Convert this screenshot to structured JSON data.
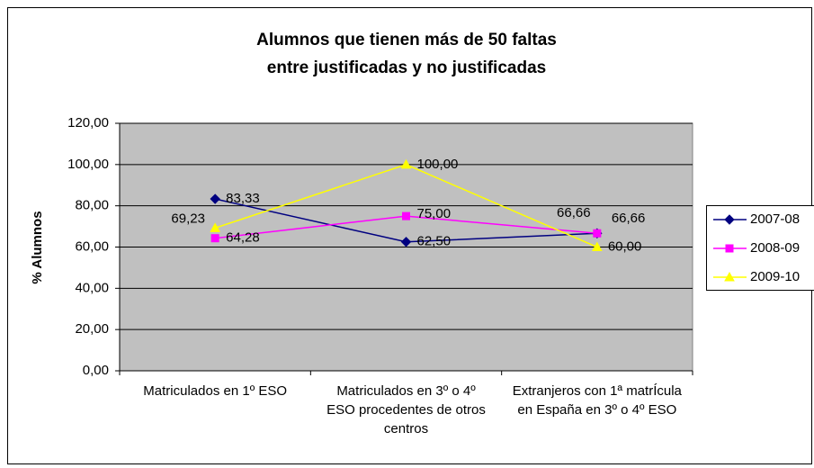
{
  "chart_data": {
    "type": "line",
    "title": [
      "Alumnos que tienen más de 50 faltas",
      "entre justificadas y no justificadas"
    ],
    "y_label": "% Alumnos",
    "categories": [
      "Matriculados en 1º ESO",
      "Matriculados en 3º o 4º ESO procedentes de otros centros",
      "Extranjeros con 1ª matrÍcula en España en 3º o 4º ESO"
    ],
    "series": [
      {
        "name": "2007-08",
        "color": "#000080",
        "marker": "diamond",
        "values": [
          83.33,
          62.5,
          66.66
        ],
        "value_labels": [
          "83,33",
          "62,50",
          "66,66"
        ]
      },
      {
        "name": "2008-09",
        "color": "#ff00ff",
        "marker": "square",
        "values": [
          64.28,
          75.0,
          66.66
        ],
        "value_labels": [
          "64,28",
          "75,00",
          "66,66"
        ]
      },
      {
        "name": "2009-10",
        "color": "#ffff00",
        "marker": "triangle",
        "values": [
          69.23,
          100.0,
          60.0
        ],
        "value_labels": [
          "69,23",
          "100,00",
          "60,00"
        ]
      }
    ],
    "ylim": [
      0,
      120
    ],
    "yticks": [
      {
        "value": 0,
        "label": "0,00"
      },
      {
        "value": 20,
        "label": "20,00"
      },
      {
        "value": 40,
        "label": "40,00"
      },
      {
        "value": 60,
        "label": "60,00"
      },
      {
        "value": 80,
        "label": "80,00"
      },
      {
        "value": 100,
        "label": "100,00"
      },
      {
        "value": 120,
        "label": "120,00"
      }
    ],
    "grid": true,
    "legend": "right",
    "plot_background": "#c0c0c0"
  }
}
